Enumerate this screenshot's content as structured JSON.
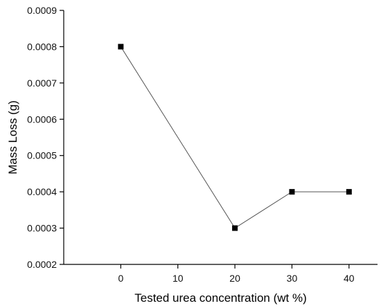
{
  "chart_data": {
    "type": "line",
    "title": "",
    "xlabel": "Tested urea concentration (wt %)",
    "ylabel": "Mass Loss (g)",
    "xlim": [
      -10,
      45
    ],
    "ylim": [
      0.0002,
      0.0009
    ],
    "x_ticks": [
      0,
      10,
      20,
      30,
      40
    ],
    "x_tick_labels": [
      "0",
      "10",
      "20",
      "30",
      "40"
    ],
    "y_ticks": [
      0.0002,
      0.0003,
      0.0004,
      0.0005,
      0.0006,
      0.0007,
      0.0008,
      0.0009
    ],
    "y_tick_labels": [
      "0.0002",
      "0.0003",
      "0.0004",
      "0.0005",
      "0.0006",
      "0.0007",
      "0.0008",
      "0.0009"
    ],
    "grid": false,
    "legend": "none",
    "marker": "square",
    "line_color": "#555555",
    "marker_color": "#000000",
    "series": [
      {
        "x": [
          0,
          20,
          30,
          40
        ],
        "values": [
          0.0008,
          0.0003,
          0.0004,
          0.0004
        ]
      }
    ]
  }
}
